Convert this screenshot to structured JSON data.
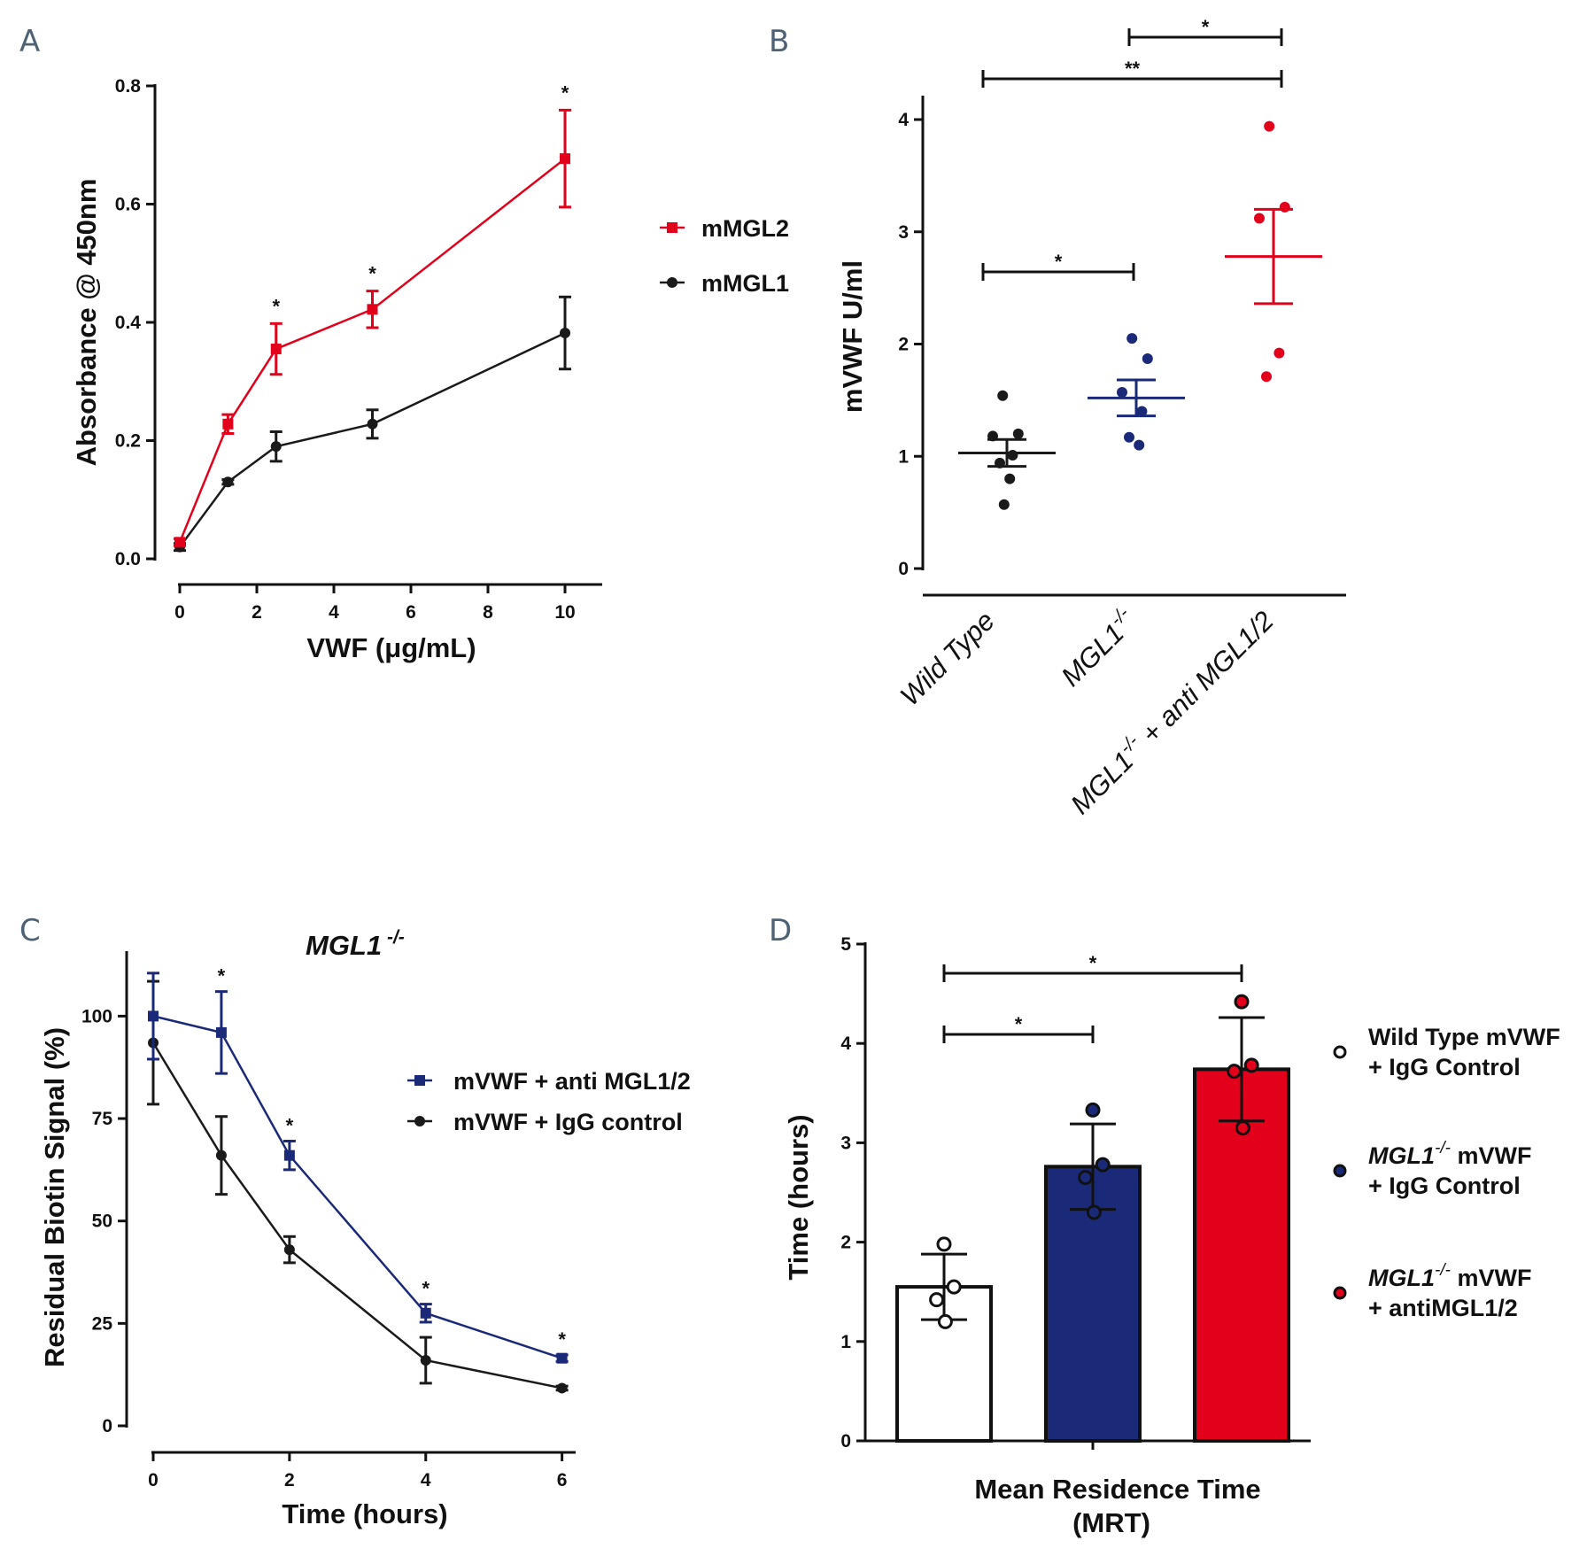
{
  "colors": {
    "red": "#e2001a",
    "black": "#1a1a1a",
    "navy": "#1b2a78",
    "panel_letter": "#4d6275"
  },
  "chart_data": [
    {
      "panel": "A",
      "type": "line",
      "xlabel": "VWF (μg/mL)",
      "ylabel": "Absorbance @ 450nm",
      "xlim": [
        0,
        11
      ],
      "ylim": [
        0,
        0.8
      ],
      "xticks": [
        "0",
        "2",
        "4",
        "6",
        "8",
        "10"
      ],
      "yticks": [
        "0.0",
        "0.2",
        "0.4",
        "0.6",
        "0.8"
      ],
      "legend_position": "right",
      "series": [
        {
          "name": "mMGL2",
          "color": "#e2001a",
          "marker": "square",
          "x": [
            0,
            1.25,
            2.5,
            5,
            10
          ],
          "y": [
            0.028,
            0.228,
            0.355,
            0.422,
            0.677
          ],
          "err": [
            0.006,
            0.016,
            0.043,
            0.031,
            0.082
          ]
        },
        {
          "name": "mMGL1",
          "color": "#1a1a1a",
          "marker": "circle",
          "x": [
            0,
            1.25,
            2.5,
            5,
            10
          ],
          "y": [
            0.02,
            0.13,
            0.19,
            0.228,
            0.382
          ],
          "err": [
            0.006,
            0.004,
            0.025,
            0.024,
            0.061
          ]
        }
      ],
      "significance": [
        {
          "x": 2.5,
          "label": "*"
        },
        {
          "x": 5,
          "label": "*"
        },
        {
          "x": 10,
          "label": "*"
        }
      ]
    },
    {
      "panel": "B",
      "type": "scatter",
      "ylabel": "mVWF U/ml",
      "ylim": [
        0,
        4
      ],
      "yticks": [
        "0",
        "1",
        "2",
        "3",
        "4"
      ],
      "categories": [
        "Wild Type",
        "MGL1",
        "MGL1 + anti MGL1/2"
      ],
      "category_sup": "-/-",
      "groups": [
        {
          "color": "#1a1a1a",
          "points": [
            1.54,
            1.2,
            1.18,
            1.01,
            0.94,
            0.8,
            0.57
          ],
          "mean": 1.03,
          "sem": 0.12
        },
        {
          "color": "#1b2a78",
          "points": [
            2.05,
            1.87,
            1.57,
            1.4,
            1.17,
            1.1
          ],
          "mean": 1.52,
          "sem": 0.16
        },
        {
          "color": "#e2001a",
          "points": [
            3.94,
            3.22,
            3.12,
            1.92,
            1.71
          ],
          "mean": 2.78,
          "sem": 0.42
        }
      ],
      "brackets": [
        {
          "from": 0,
          "to": 1,
          "label": "*"
        },
        {
          "from": 0,
          "to": 2,
          "label": "**"
        },
        {
          "from": 1,
          "to": 2,
          "label": "*"
        }
      ]
    },
    {
      "panel": "C",
      "type": "line",
      "title": "MGL1",
      "title_sup": "-/-",
      "xlabel": "Time (hours)",
      "ylabel": "Residual Biotin Signal (%)",
      "xlim": [
        0,
        6.2
      ],
      "ylim": [
        0,
        115
      ],
      "xticks": [
        "0",
        "2",
        "4",
        "6"
      ],
      "yticks": [
        "0",
        "25",
        "50",
        "75",
        "100"
      ],
      "legend_position": "right",
      "series": [
        {
          "name": "mVWF + anti MGL1/2",
          "color": "#1b2a78",
          "marker": "square",
          "x": [
            0,
            1,
            2,
            4,
            6
          ],
          "y": [
            100,
            96,
            66,
            27.5,
            16.5
          ],
          "err": [
            10.5,
            10,
            3.5,
            2.2,
            0.8
          ]
        },
        {
          "name": "mVWF + IgG control",
          "color": "#1a1a1a",
          "marker": "circle",
          "x": [
            0,
            1,
            2,
            4,
            6
          ],
          "y": [
            93.5,
            66,
            43,
            16,
            9.2
          ],
          "err": [
            15,
            9.5,
            3.2,
            5.6,
            0.5
          ]
        }
      ],
      "significance": [
        {
          "x": 1,
          "label": "*"
        },
        {
          "x": 2,
          "label": "*"
        },
        {
          "x": 4,
          "label": "*"
        },
        {
          "x": 6,
          "label": "*"
        }
      ]
    },
    {
      "panel": "D",
      "type": "bar",
      "xlabel_lines": [
        "Mean Residence Time",
        "(MRT)"
      ],
      "ylabel": "Time (hours)",
      "ylim": [
        0,
        5
      ],
      "yticks": [
        "0",
        "1",
        "2",
        "3",
        "4",
        "5"
      ],
      "bars": [
        {
          "value": 1.55,
          "err": 0.33,
          "color": "#ffffff",
          "points": [
            1.98,
            1.55,
            1.42,
            1.2
          ]
        },
        {
          "value": 2.76,
          "err": 0.43,
          "color": "#1b2a78",
          "points": [
            3.33,
            2.78,
            2.65,
            2.3
          ]
        },
        {
          "value": 3.74,
          "err": 0.52,
          "color": "#e2001a",
          "points": [
            4.42,
            3.78,
            3.72,
            3.15
          ]
        }
      ],
      "brackets": [
        {
          "from": 0,
          "to": 1,
          "label": "*"
        },
        {
          "from": 0,
          "to": 2,
          "label": "*"
        }
      ],
      "legend": [
        {
          "line1_pre": "",
          "line1_sup": "",
          "line1_post": "Wild Type mVWF",
          "line2": "+ IgG Control",
          "fill": "#ffffff"
        },
        {
          "line1_pre": "MGL1",
          "line1_sup": "-/-",
          "line1_post": " mVWF",
          "line2": "+ IgG Control",
          "fill": "#1b2a78"
        },
        {
          "line1_pre": "MGL1",
          "line1_sup": "-/-",
          "line1_post": " mVWF",
          "line2": "+ antiMGL1/2",
          "fill": "#e2001a"
        }
      ]
    }
  ],
  "panel_labels": [
    "A",
    "B",
    "C",
    "D"
  ]
}
